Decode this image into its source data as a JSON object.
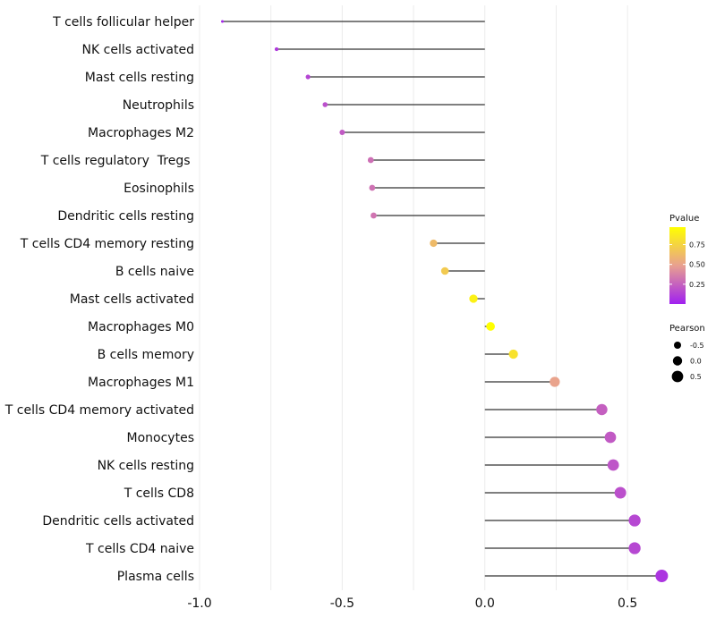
{
  "chart_data": {
    "type": "lollipop",
    "title": "",
    "xlabel": "",
    "ylabel": "",
    "xlim": [
      -1.0,
      0.6
    ],
    "x_ticks": [
      -1.0,
      -0.5,
      0.0,
      0.5
    ],
    "x_tick_labels": [
      "-1.0",
      "-0.5",
      "0.0",
      "0.5"
    ],
    "grid": true,
    "points": [
      {
        "category": "T cells follicular helper",
        "pearson": -0.92,
        "pvalue": 0.03
      },
      {
        "category": "NK cells activated",
        "pearson": -0.73,
        "pvalue": 0.1
      },
      {
        "category": "Mast cells resting",
        "pearson": -0.62,
        "pvalue": 0.14
      },
      {
        "category": "Neutrophils",
        "pearson": -0.56,
        "pvalue": 0.18
      },
      {
        "category": "Macrophages M2",
        "pearson": -0.5,
        "pvalue": 0.22
      },
      {
        "category": "T cells regulatory  Tregs ",
        "pearson": -0.4,
        "pvalue": 0.3
      },
      {
        "category": "Eosinophils",
        "pearson": -0.395,
        "pvalue": 0.31
      },
      {
        "category": "Dendritic cells resting",
        "pearson": -0.39,
        "pvalue": 0.32
      },
      {
        "category": "T cells CD4 memory resting",
        "pearson": -0.18,
        "pvalue": 0.62
      },
      {
        "category": "B cells naive",
        "pearson": -0.14,
        "pvalue": 0.7
      },
      {
        "category": "Mast cells activated",
        "pearson": -0.04,
        "pvalue": 0.9
      },
      {
        "category": "Macrophages M0",
        "pearson": 0.02,
        "pvalue": 0.97
      },
      {
        "category": "B cells memory",
        "pearson": 0.1,
        "pvalue": 0.82
      },
      {
        "category": "Macrophages M1",
        "pearson": 0.245,
        "pvalue": 0.5
      },
      {
        "category": "T cells CD4 memory activated",
        "pearson": 0.41,
        "pvalue": 0.24
      },
      {
        "category": "Monocytes",
        "pearson": 0.44,
        "pvalue": 0.22
      },
      {
        "category": "NK cells resting",
        "pearson": 0.45,
        "pvalue": 0.2
      },
      {
        "category": "T cells CD8",
        "pearson": 0.475,
        "pvalue": 0.18
      },
      {
        "category": "Dendritic cells activated",
        "pearson": 0.525,
        "pvalue": 0.15
      },
      {
        "category": "T cells CD4 naive",
        "pearson": 0.525,
        "pvalue": 0.15
      },
      {
        "category": "Plasma cells",
        "pearson": 0.62,
        "pvalue": 0.08
      }
    ],
    "legend": {
      "color": {
        "title": "Pvalue",
        "ticks": [
          0.75,
          0.5,
          0.25
        ],
        "tick_labels": [
          "0.75",
          "0.50",
          "0.25"
        ],
        "range": [
          0.0,
          0.97
        ],
        "low_color": "#a020f0",
        "mid_color": "#e8a090",
        "high_color": "#ffff00"
      },
      "size": {
        "title": "Pearson",
        "values": [
          -0.5,
          0.0,
          0.5
        ],
        "labels": [
          "-0.5",
          "0.0",
          "0.5"
        ]
      },
      "placement": "right"
    },
    "colors": {
      "stem": "#333333",
      "grid": "#ececec"
    }
  }
}
